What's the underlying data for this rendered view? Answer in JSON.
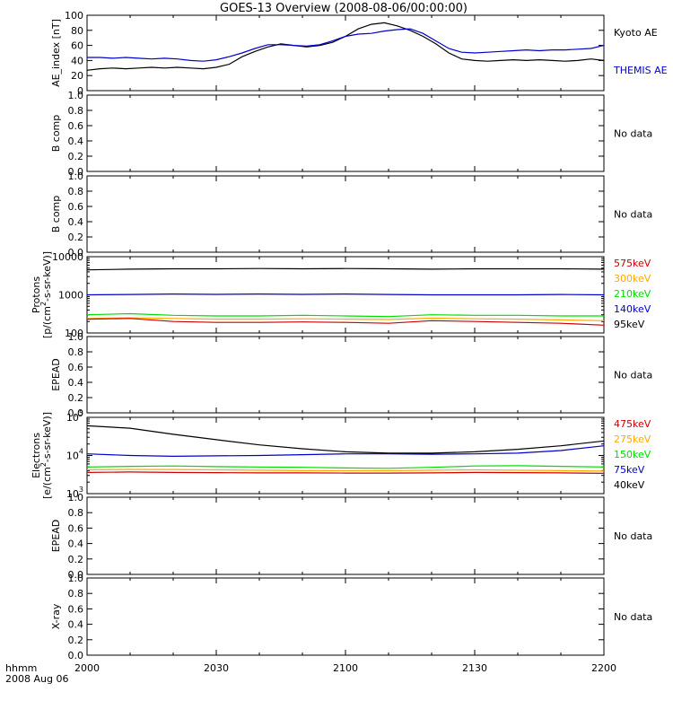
{
  "title": "GOES-13 Overview (2008-08-06/00:00:00)",
  "time_label_line1": "hhmm",
  "time_label_line2": "2008 Aug 06",
  "time_ticks": [
    "2000",
    "2030",
    "2100",
    "2130",
    "2200"
  ],
  "chart_data": [
    {
      "type": "line",
      "ylabel": "AE_index [nT]",
      "ylim": [
        0,
        100
      ],
      "yticks": [
        "0",
        "20",
        "40",
        "60",
        "80",
        "100"
      ],
      "x": [
        0,
        3,
        6,
        9,
        12,
        15,
        18,
        21,
        24,
        27,
        30,
        33,
        36,
        39,
        42,
        45,
        48,
        51,
        54,
        57,
        60,
        63,
        66,
        69,
        72,
        75,
        78,
        81,
        84,
        87,
        90,
        93,
        96,
        99,
        102,
        105,
        108,
        111,
        114,
        117,
        120
      ],
      "series": [
        {
          "name": "Kyoto AE",
          "color": "#000000",
          "values": [
            27,
            29,
            30,
            29,
            30,
            31,
            30,
            31,
            30,
            29,
            31,
            35,
            45,
            52,
            58,
            62,
            60,
            58,
            60,
            64,
            72,
            82,
            88,
            90,
            86,
            80,
            72,
            62,
            50,
            42,
            40,
            39,
            40,
            41,
            40,
            41,
            40,
            39,
            40,
            42,
            40
          ]
        },
        {
          "name": "THEMIS AE",
          "color": "#0000cc",
          "values": [
            44,
            44,
            43,
            44,
            43,
            42,
            43,
            42,
            40,
            39,
            41,
            45,
            50,
            56,
            61,
            61,
            60,
            59,
            61,
            66,
            72,
            75,
            76,
            79,
            81,
            82,
            76,
            66,
            56,
            51,
            50,
            51,
            52,
            53,
            54,
            53,
            54,
            54,
            55,
            56,
            60
          ]
        }
      ]
    },
    {
      "type": "line",
      "ylabel": "B comp",
      "ylim": [
        0,
        1
      ],
      "yticks": [
        "0.0",
        "0.2",
        "0.4",
        "0.6",
        "0.8",
        "1.0"
      ],
      "series": [],
      "legend": [
        "No data"
      ]
    },
    {
      "type": "line",
      "ylabel": "B comp",
      "ylim": [
        0,
        1
      ],
      "yticks": [
        "0.0",
        "0.2",
        "0.4",
        "0.6",
        "0.8",
        "1.0"
      ],
      "series": [],
      "legend": [
        "No data"
      ]
    },
    {
      "type": "line",
      "ylabel": "Protons [p/(cm2-s-sr-keV)]",
      "ylim": [
        100,
        10000
      ],
      "yscale": "log",
      "yticks": [
        "100",
        "1000",
        "10000"
      ],
      "x": [
        0,
        10,
        20,
        30,
        40,
        50,
        60,
        70,
        80,
        90,
        100,
        110,
        120
      ],
      "series": [
        {
          "name": "95keV",
          "color": "#000000",
          "values": [
            4500,
            4700,
            4800,
            4800,
            4900,
            4800,
            4900,
            4800,
            4700,
            4800,
            4800,
            4800,
            4700
          ]
        },
        {
          "name": "140keV",
          "color": "#0000cc",
          "values": [
            1000,
            1020,
            1050,
            1030,
            1050,
            1030,
            1050,
            1020,
            1000,
            1000,
            1000,
            1020,
            1000
          ]
        },
        {
          "name": "210keV",
          "color": "#00dd00",
          "values": [
            300,
            320,
            290,
            280,
            280,
            290,
            280,
            270,
            300,
            290,
            290,
            280,
            280
          ]
        },
        {
          "name": "300keV",
          "color": "#ffaa00",
          "values": [
            240,
            250,
            240,
            230,
            230,
            235,
            230,
            225,
            245,
            235,
            230,
            220,
            210
          ]
        },
        {
          "name": "575keV",
          "color": "#cc0000",
          "values": [
            230,
            240,
            200,
            190,
            190,
            195,
            190,
            180,
            210,
            200,
            190,
            180,
            160
          ]
        }
      ]
    },
    {
      "type": "line",
      "ylabel": "EPEAD",
      "ylim": [
        0,
        1
      ],
      "yticks": [
        "0.0",
        "0.2",
        "0.4",
        "0.6",
        "0.8",
        "1.0"
      ],
      "series": [],
      "legend": [
        "No data"
      ]
    },
    {
      "type": "line",
      "ylabel": "Electrons [e/(cm2-s-sr-keV)]",
      "ylim": [
        1000,
        100000
      ],
      "yscale": "log",
      "yticks": [
        "10^3",
        "10^4",
        "10^5"
      ],
      "x": [
        0,
        10,
        20,
        30,
        40,
        50,
        60,
        70,
        80,
        90,
        100,
        110,
        120
      ],
      "series": [
        {
          "name": "40keV",
          "color": "#000000",
          "values": [
            60000,
            52000,
            36000,
            26000,
            19000,
            15000,
            12500,
            11500,
            11500,
            12500,
            14500,
            18000,
            24000
          ]
        },
        {
          "name": "75keV",
          "color": "#0000cc",
          "values": [
            11000,
            10000,
            9500,
            9800,
            10000,
            10500,
            11000,
            11000,
            10800,
            11000,
            11500,
            13500,
            18000
          ]
        },
        {
          "name": "150keV",
          "color": "#00dd00",
          "values": [
            5000,
            5200,
            5300,
            5100,
            5000,
            4900,
            4700,
            4600,
            4900,
            5300,
            5400,
            5200,
            5000
          ]
        },
        {
          "name": "275keV",
          "color": "#ffaa00",
          "values": [
            4200,
            4300,
            4300,
            4200,
            4100,
            4000,
            4000,
            4000,
            4100,
            4200,
            4100,
            4000,
            3900
          ]
        },
        {
          "name": "475keV",
          "color": "#cc0000",
          "values": [
            3600,
            3700,
            3600,
            3550,
            3500,
            3500,
            3450,
            3450,
            3500,
            3600,
            3550,
            3500,
            3400
          ]
        }
      ]
    },
    {
      "type": "line",
      "ylabel": "EPEAD",
      "ylim": [
        0,
        1
      ],
      "yticks": [
        "0.0",
        "0.2",
        "0.4",
        "0.6",
        "0.8",
        "1.0"
      ],
      "series": [],
      "legend": [
        "No data"
      ]
    },
    {
      "type": "line",
      "ylabel": "X-ray",
      "ylim": [
        0,
        1
      ],
      "yticks": [
        "0.0",
        "0.2",
        "0.4",
        "0.6",
        "0.8",
        "1.0"
      ],
      "series": [],
      "legend": [
        "No data"
      ]
    }
  ],
  "legends": [
    [
      "Kyoto AE",
      "THEMIS AE"
    ],
    [
      "No data"
    ],
    [
      "No data"
    ],
    [
      "575keV",
      "300keV",
      "210keV",
      "140keV",
      "95keV"
    ],
    [
      "No data"
    ],
    [
      "475keV",
      "275keV",
      "150keV",
      "75keV",
      "40keV"
    ],
    [
      "No data"
    ],
    [
      "No data"
    ]
  ],
  "legend_colors": [
    [
      "#000000",
      "#0000cc"
    ],
    [
      "#000000"
    ],
    [
      "#000000"
    ],
    [
      "#cc0000",
      "#ffaa00",
      "#00dd00",
      "#0000cc",
      "#000000"
    ],
    [
      "#000000"
    ],
    [
      "#cc0000",
      "#ffaa00",
      "#00dd00",
      "#0000cc",
      "#000000"
    ],
    [
      "#000000"
    ],
    [
      "#000000"
    ]
  ]
}
